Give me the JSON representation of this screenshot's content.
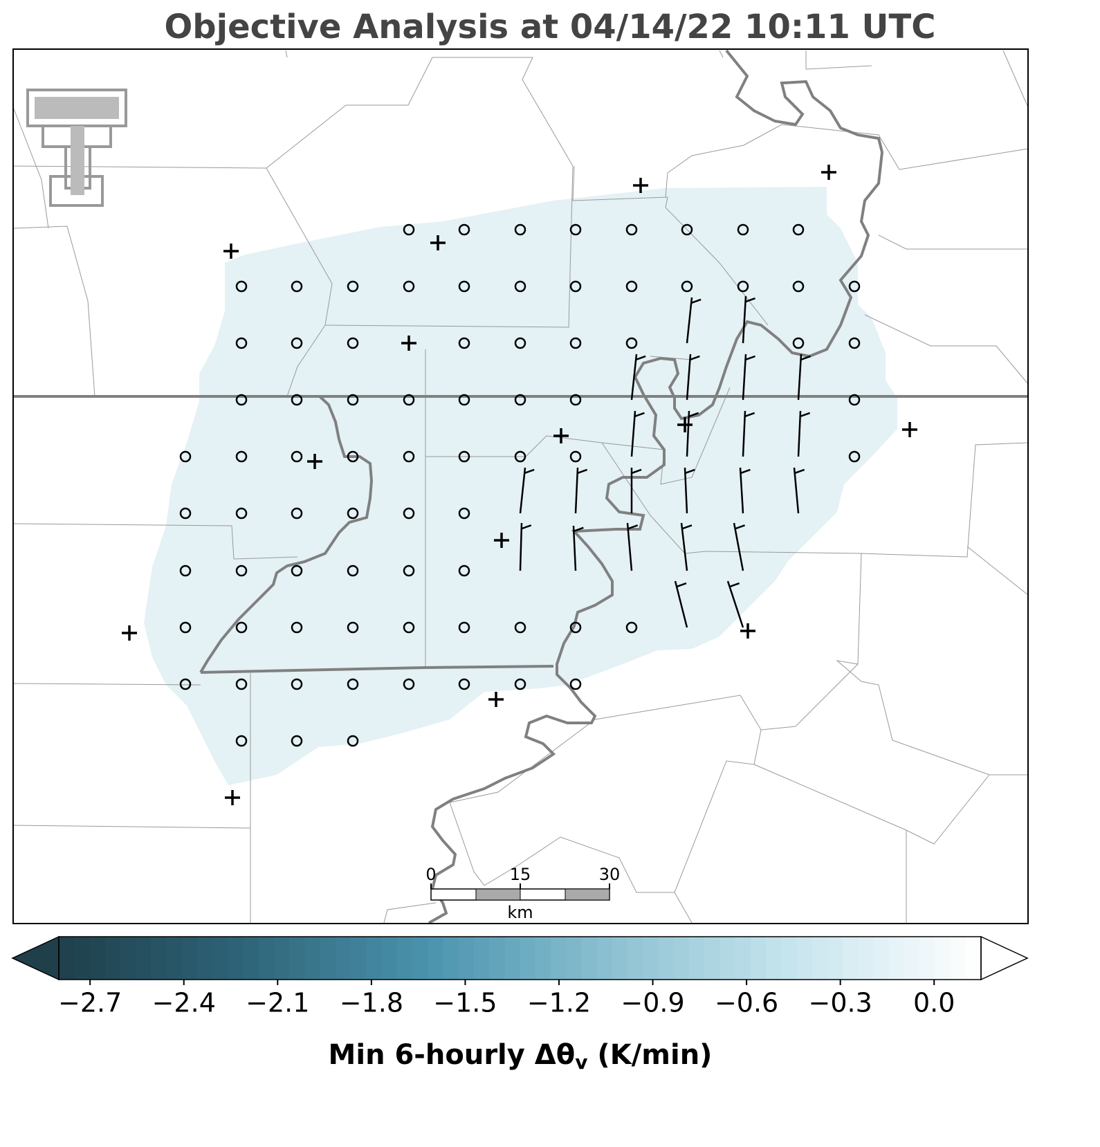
{
  "title": "Objective Analysis at 04/14/22 10:11 UTC",
  "colorbar": {
    "clim": [
      -2.8,
      0.15
    ],
    "colormap": [
      "#1f3f4b",
      "#2f6478",
      "#4a93ad",
      "#8cc1d2",
      "#c9e5ee",
      "#ffffff"
    ],
    "ticks": [
      {
        "value": -2.7,
        "label": "−2.7"
      },
      {
        "value": -2.4,
        "label": "−2.4"
      },
      {
        "value": -2.1,
        "label": "−2.1"
      },
      {
        "value": -1.8,
        "label": "−1.8"
      },
      {
        "value": -1.5,
        "label": "−1.5"
      },
      {
        "value": -1.2,
        "label": "−1.2"
      },
      {
        "value": -0.9,
        "label": "−0.9"
      },
      {
        "value": -0.6,
        "label": "−0.6"
      },
      {
        "value": -0.3,
        "label": "−0.3"
      },
      {
        "value": 0,
        "label": "0.0"
      }
    ],
    "label": "Min 6-hourly Δθ",
    "label_subscript": "v",
    "label_suffix": " (K/min)"
  },
  "scale_bar": {
    "lim": [
      0,
      30
    ],
    "ticks": [
      0,
      15,
      30
    ],
    "unit": "km"
  }
}
